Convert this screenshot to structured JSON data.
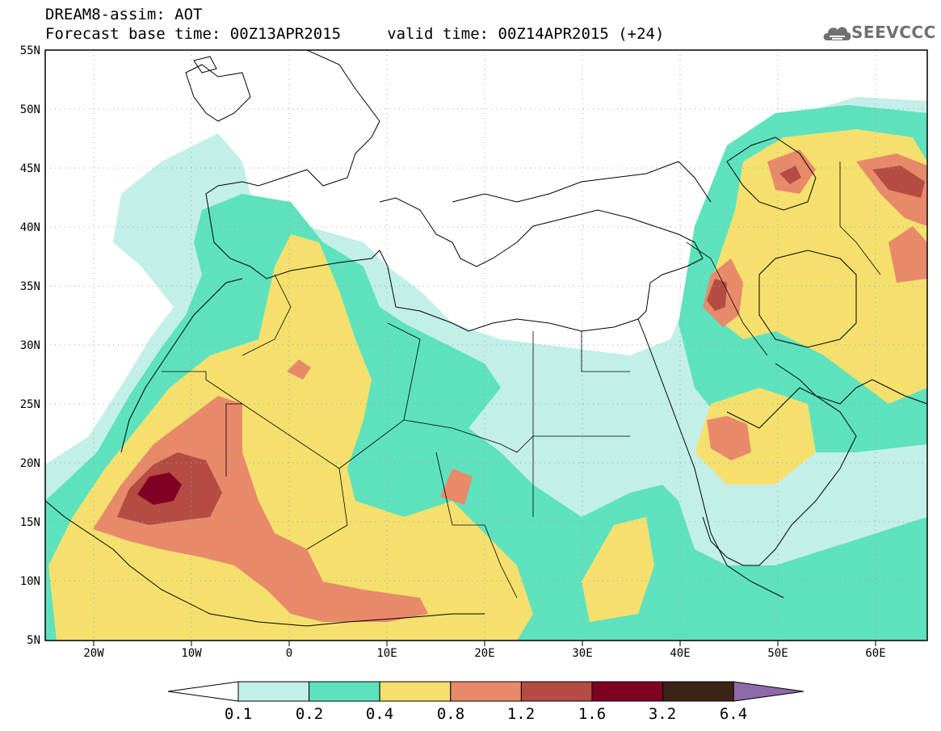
{
  "header": {
    "line1": "DREAM8-assim: AOT",
    "line2": "Forecast base time: 00Z13APR2015     valid time: 00Z14APR2015 (+24)"
  },
  "logo": {
    "text": "SEEVCCC",
    "icon": "cloud-icon"
  },
  "map": {
    "lat_labels": [
      "55N",
      "50N",
      "45N",
      "40N",
      "35N",
      "30N",
      "25N",
      "20N",
      "15N",
      "10N",
      "5N"
    ],
    "lon_labels": [
      "20W",
      "10W",
      "0",
      "10E",
      "20E",
      "30E",
      "40E",
      "50E",
      "60E"
    ],
    "lat_range": [
      5,
      55
    ],
    "lon_range": [
      -25,
      65
    ]
  },
  "colorbar": {
    "labels": [
      "0.1",
      "0.2",
      "0.4",
      "0.8",
      "1.2",
      "1.6",
      "3.2",
      "6.4"
    ],
    "colors": [
      "#c2efe8",
      "#5de2bd",
      "#f5e06e",
      "#e8896a",
      "#b44c43",
      "#800024",
      "#3b2415",
      "#8f6aa8"
    ]
  }
}
